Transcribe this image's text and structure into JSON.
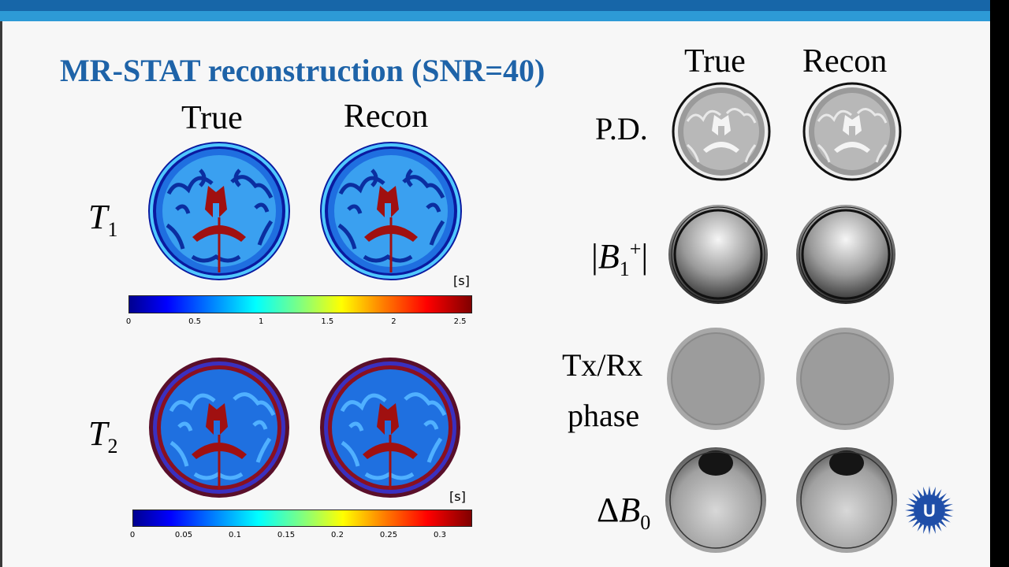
{
  "slide": {
    "title": "MR-STAT reconstruction (SNR=40)",
    "left": {
      "col_true": "True",
      "col_recon": "Recon",
      "t1": {
        "sym": "T",
        "sub": "1",
        "unit": "[s]",
        "ticks": [
          "0",
          "0.5",
          "1",
          "1.5",
          "2",
          "2.5"
        ],
        "range": [
          0,
          2.58
        ]
      },
      "t2": {
        "sym": "T",
        "sub": "2",
        "unit": "[s]",
        "ticks": [
          "0",
          "0.05",
          "0.1",
          "0.15",
          "0.2",
          "0.25",
          "0.3"
        ],
        "range": [
          0,
          0.33
        ]
      }
    },
    "right": {
      "col_true": "True",
      "col_recon": "Recon",
      "pd_label": "P.D.",
      "b1_bar_left": "|",
      "b1_sym": "B",
      "b1_sub": "1",
      "b1_sup": "+",
      "b1_bar_right": "|",
      "phase_line1": "Tx/Rx",
      "phase_line2": "phase",
      "db0_delta": "Δ",
      "db0_sym": "B",
      "db0_sub": "0"
    },
    "colormap": [
      "#00008f",
      "#0000ff",
      "#0080ff",
      "#00ffff",
      "#80ff80",
      "#ffff00",
      "#ff8000",
      "#ff0000",
      "#800000"
    ]
  }
}
